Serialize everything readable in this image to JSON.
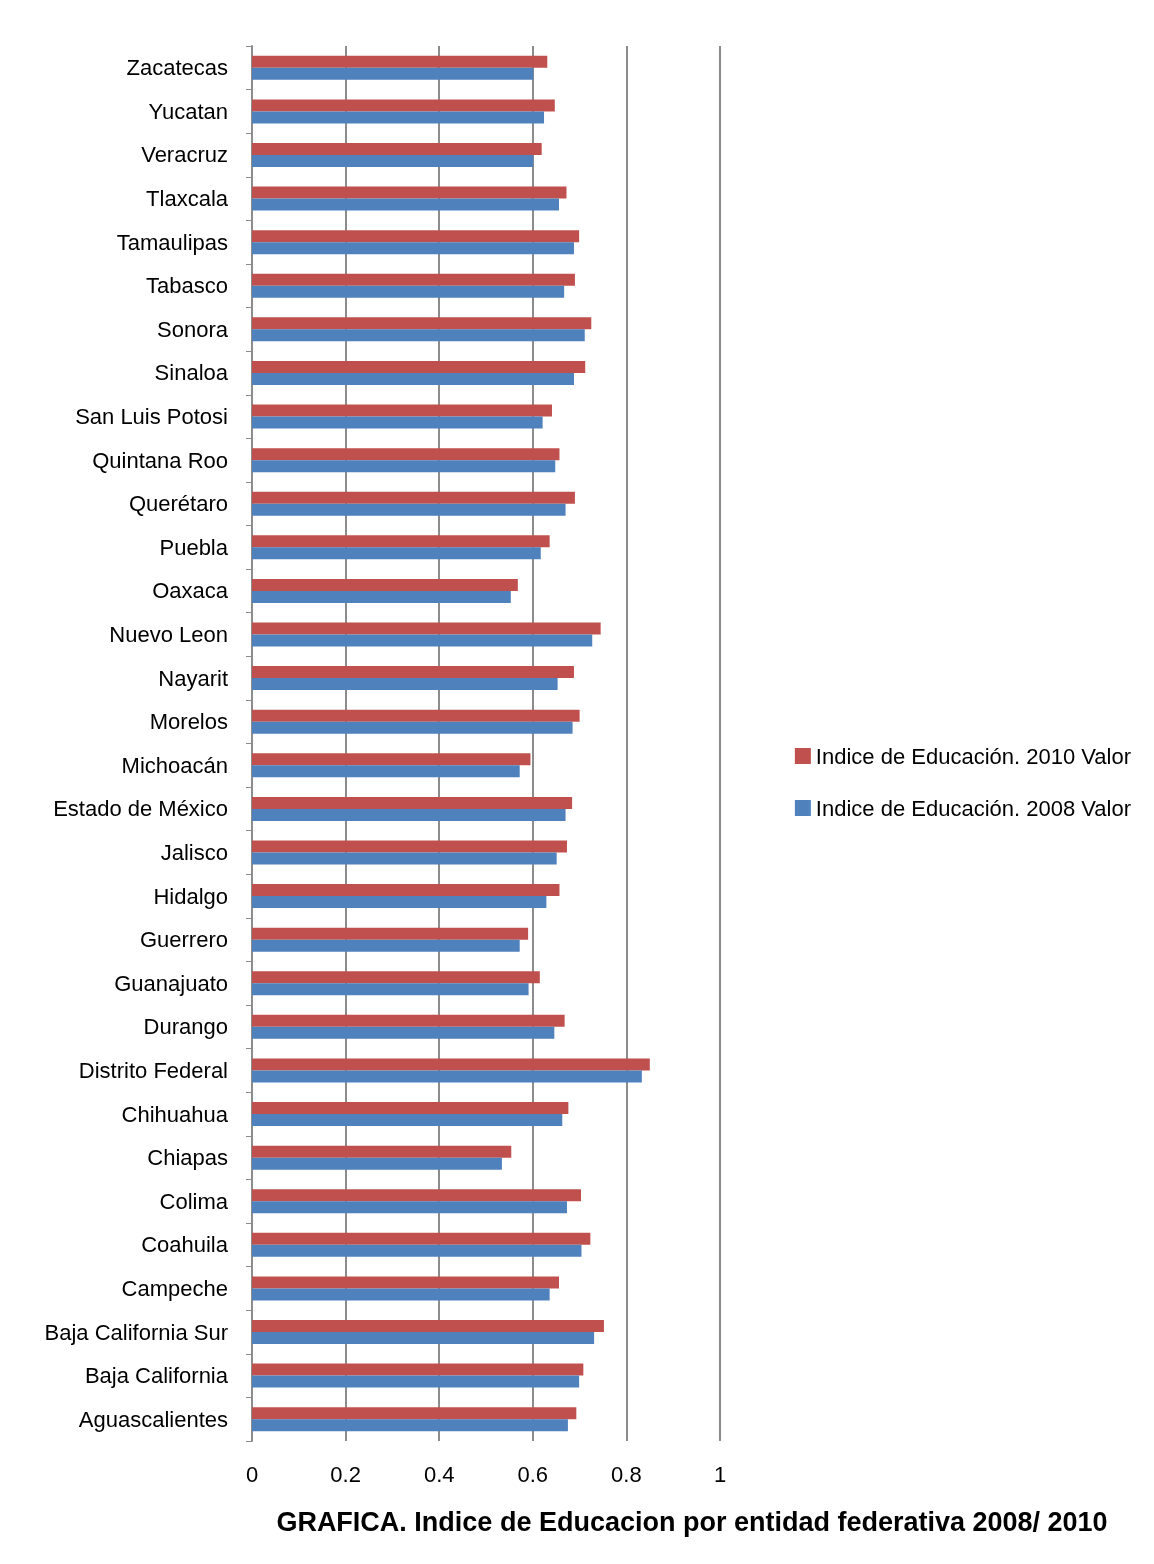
{
  "chart_data": {
    "type": "bar",
    "orientation": "horizontal",
    "title": "GRAFICA. Indice de Educacion por entidad federativa 2008/ 2010",
    "categories": [
      "Zacatecas",
      "Yucatan",
      "Veracruz",
      "Tlaxcala",
      "Tamaulipas",
      "Tabasco",
      "Sonora",
      "Sinaloa",
      "San Luis Potosi",
      "Quintana Roo",
      "Querétaro",
      "Puebla",
      "Oaxaca",
      "Nuevo Leon",
      "Nayarit",
      "Morelos",
      "Michoacán",
      "Estado de México",
      "Jalisco",
      "Hidalgo",
      "Guerrero",
      "Guanajuato",
      "Durango",
      "Distrito Federal",
      "Chihuahua",
      "Chiapas",
      "Colima",
      "Coahuila",
      "Campeche",
      "Baja California Sur",
      "Baja California",
      "Aguascalientes"
    ],
    "series": [
      {
        "name": "Indice de Educación. 2010 Valor",
        "color": "#c0504d",
        "values": [
          0.631,
          0.647,
          0.619,
          0.672,
          0.699,
          0.69,
          0.725,
          0.712,
          0.641,
          0.657,
          0.69,
          0.636,
          0.568,
          0.745,
          0.688,
          0.7,
          0.595,
          0.684,
          0.673,
          0.657,
          0.59,
          0.615,
          0.668,
          0.85,
          0.676,
          0.554,
          0.703,
          0.723,
          0.656,
          0.752,
          0.708,
          0.693
        ]
      },
      {
        "name": "Indice de Educación. 2008 Valor",
        "color": "#4f81bd",
        "values": [
          0.601,
          0.624,
          0.601,
          0.656,
          0.688,
          0.667,
          0.711,
          0.688,
          0.621,
          0.648,
          0.67,
          0.617,
          0.553,
          0.727,
          0.653,
          0.685,
          0.572,
          0.67,
          0.651,
          0.629,
          0.572,
          0.591,
          0.646,
          0.833,
          0.663,
          0.534,
          0.673,
          0.704,
          0.636,
          0.731,
          0.699,
          0.675
        ]
      }
    ],
    "xlim": [
      0,
      1
    ],
    "xticks": [
      0,
      0.2,
      0.4,
      0.6,
      0.8,
      1
    ],
    "grid": "x",
    "legend": "right"
  }
}
